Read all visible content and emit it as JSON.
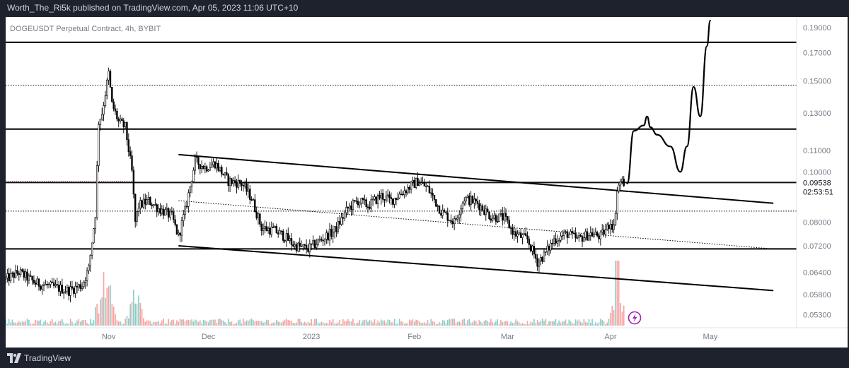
{
  "header": {
    "publish_text": "Worth_The_Ri5k published on TradingView.com, Apr 05, 2023 11:06 UTC+10"
  },
  "symbol": {
    "label": "DOGEUSDT Perpetual Contract, 4h, BYBIT"
  },
  "footer": {
    "brand": "TradingView"
  },
  "colors": {
    "background": "#ffffff",
    "frame": "#1e222d",
    "candle": "#000000",
    "vol_up": "#26a69a",
    "vol_down": "#ef5350",
    "last_price_line": "#c62828",
    "lightning": "#9c27b0"
  },
  "chart_data": {
    "type": "candlestick",
    "title": "",
    "x_ticks": [
      "Nov",
      "Dec",
      "2023",
      "Feb",
      "Mar",
      "Apr",
      "May"
    ],
    "y_ticks": [
      "0.19000",
      "0.17000",
      "0.15000",
      "0.13000",
      "0.11000",
      "0.10000",
      "0.08000",
      "0.07200",
      "0.06400",
      "0.05800",
      "0.05300"
    ],
    "last_price": "0.09538",
    "countdown": "02:53:51",
    "ylim": [
      0.05,
      0.198
    ],
    "y_scale": "log",
    "grid": false,
    "price_path": [
      [
        "2022-10-01",
        0.062
      ],
      [
        "2022-10-05",
        0.064
      ],
      [
        "2022-10-10",
        0.061
      ],
      [
        "2022-10-15",
        0.06
      ],
      [
        "2022-10-20",
        0.059
      ],
      [
        "2022-10-24",
        0.0605
      ],
      [
        "2022-10-26",
        0.065
      ],
      [
        "2022-10-28",
        0.083
      ],
      [
        "2022-10-29",
        0.125
      ],
      [
        "2022-10-30",
        0.13
      ],
      [
        "2022-11-01",
        0.155
      ],
      [
        "2022-11-02",
        0.135
      ],
      [
        "2022-11-04",
        0.125
      ],
      [
        "2022-11-06",
        0.122
      ],
      [
        "2022-11-08",
        0.1
      ],
      [
        "2022-11-09",
        0.08
      ],
      [
        "2022-11-10",
        0.086
      ],
      [
        "2022-11-13",
        0.088
      ],
      [
        "2022-11-16",
        0.085
      ],
      [
        "2022-11-20",
        0.082
      ],
      [
        "2022-11-22",
        0.075
      ],
      [
        "2022-11-24",
        0.084
      ],
      [
        "2022-11-27",
        0.105
      ],
      [
        "2022-11-30",
        0.102
      ],
      [
        "2022-12-03",
        0.104
      ],
      [
        "2022-12-07",
        0.096
      ],
      [
        "2022-12-11",
        0.095
      ],
      [
        "2022-12-14",
        0.089
      ],
      [
        "2022-12-17",
        0.078
      ],
      [
        "2022-12-21",
        0.077
      ],
      [
        "2022-12-24",
        0.075
      ],
      [
        "2022-12-27",
        0.072
      ],
      [
        "2022-12-31",
        0.071
      ],
      [
        "2023-01-04",
        0.074
      ],
      [
        "2023-01-08",
        0.077
      ],
      [
        "2023-01-12",
        0.085
      ],
      [
        "2023-01-15",
        0.088
      ],
      [
        "2023-01-18",
        0.086
      ],
      [
        "2023-01-22",
        0.09
      ],
      [
        "2023-01-25",
        0.088
      ],
      [
        "2023-01-29",
        0.092
      ],
      [
        "2023-02-02",
        0.096
      ],
      [
        "2023-02-05",
        0.093
      ],
      [
        "2023-02-09",
        0.084
      ],
      [
        "2023-02-13",
        0.08
      ],
      [
        "2023-02-16",
        0.089
      ],
      [
        "2023-02-20",
        0.087
      ],
      [
        "2023-02-24",
        0.082
      ],
      [
        "2023-02-28",
        0.0815
      ],
      [
        "2023-03-03",
        0.076
      ],
      [
        "2023-03-07",
        0.074
      ],
      [
        "2023-03-10",
        0.067
      ],
      [
        "2023-03-12",
        0.069
      ],
      [
        "2023-03-15",
        0.074
      ],
      [
        "2023-03-19",
        0.076
      ],
      [
        "2023-03-22",
        0.074
      ],
      [
        "2023-03-26",
        0.076
      ],
      [
        "2023-03-29",
        0.075
      ],
      [
        "2023-03-31",
        0.078
      ],
      [
        "2023-04-01",
        0.08
      ],
      [
        "2023-04-02",
        0.078
      ],
      [
        "2023-04-03",
        0.092
      ],
      [
        "2023-04-04",
        0.096
      ],
      [
        "2023-04-05",
        0.0954
      ]
    ],
    "volume_spike_dates": [
      "2022-10-30",
      "2022-11-01",
      "2022-11-09",
      "2023-04-03"
    ],
    "horizontal_levels": [
      {
        "price": 0.178,
        "style": "solid"
      },
      {
        "price": 0.147,
        "style": "dotted"
      },
      {
        "price": 0.121,
        "style": "solid"
      },
      {
        "price": 0.0954,
        "style": "solid"
      },
      {
        "price": 0.084,
        "style": "dotted"
      },
      {
        "price": 0.071,
        "style": "solid"
      }
    ],
    "trendlines": [
      {
        "from": [
          "2022-11-22",
          0.108
        ],
        "to": [
          "2023-05-20",
          0.087
        ],
        "style": "solid"
      },
      {
        "from": [
          "2022-11-22",
          0.072
        ],
        "to": [
          "2023-05-20",
          0.059
        ],
        "style": "solid"
      },
      {
        "from": [
          "2022-11-22",
          0.088
        ],
        "to": [
          "2023-05-20",
          0.071
        ],
        "style": "dotted"
      }
    ],
    "projection_path": [
      [
        "2023-04-06",
        0.095
      ],
      [
        "2023-04-08",
        0.12
      ],
      [
        "2023-04-11",
        0.123
      ],
      [
        "2023-04-12",
        0.128
      ],
      [
        "2023-04-13",
        0.122
      ],
      [
        "2023-04-15",
        0.118
      ],
      [
        "2023-04-19",
        0.112
      ],
      [
        "2023-04-22",
        0.1
      ],
      [
        "2023-04-24",
        0.112
      ],
      [
        "2023-04-26",
        0.146
      ],
      [
        "2023-04-28",
        0.128
      ],
      [
        "2023-04-30",
        0.175
      ],
      [
        "2023-05-01",
        0.196
      ]
    ]
  }
}
